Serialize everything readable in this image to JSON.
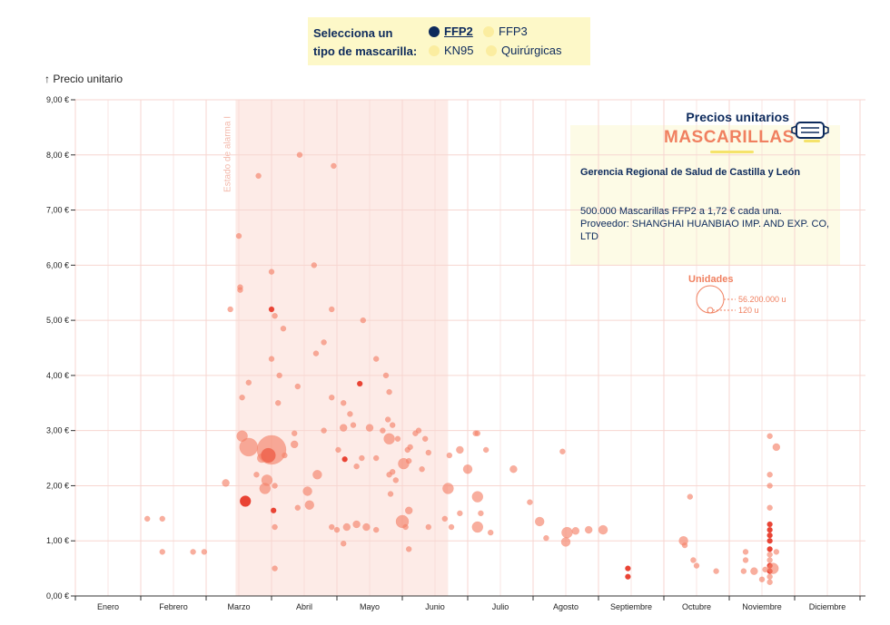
{
  "selector": {
    "prompt_line1": "Selecciona un",
    "prompt_line2": "tipo de mascarilla:",
    "options": [
      {
        "label": "FFP2",
        "active": true
      },
      {
        "label": "FFP3",
        "active": false
      },
      {
        "label": "KN95",
        "active": false
      },
      {
        "label": "Quirúrgicas",
        "active": false
      }
    ]
  },
  "info": {
    "title": "Precios unitarios",
    "big": "MASCARILLAS",
    "buyer": "Gerencia Regional de Salud de Castilla y León",
    "detail_line1": "500.000 Mascarillas FFP2 a 1,72 € cada una.",
    "detail_line2": "Proveedor: SHANGHAI HUANBIAO IMP. AND EXP. CO, LTD"
  },
  "size_legend": {
    "title": "Unidades",
    "max_label": "56.200.000 u",
    "min_label": "120 u"
  },
  "chart_data": {
    "type": "scatter",
    "ylabel": "↑ Precio unitario",
    "ylim": [
      0,
      9
    ],
    "yticks": [
      "0,00 €",
      "1,00 €",
      "2,00 €",
      "3,00 €",
      "4,00 €",
      "5,00 €",
      "6,00 €",
      "7,00 €",
      "8,00 €",
      "9,00 €"
    ],
    "xlim": [
      0,
      12
    ],
    "months": [
      "Enero",
      "Febrero",
      "Marzo",
      "Abril",
      "Mayo",
      "Junio",
      "Julio",
      "Agosto",
      "Septiembre",
      "Octubre",
      "Noviembre",
      "Diciembre"
    ],
    "grid": true,
    "shaded_period": {
      "label": "Estado de alarma I",
      "from": 2.45,
      "to": 5.7
    },
    "colors": {
      "point": "#f5836a",
      "highlight": "#e83a2a",
      "shade": "#fdebe7",
      "grid": "#f7d6d0",
      "axis": "#333333"
    },
    "points": [
      {
        "x": 1.1,
        "y": 1.4,
        "u": 3
      },
      {
        "x": 1.33,
        "y": 1.4,
        "u": 3
      },
      {
        "x": 1.33,
        "y": 0.8,
        "u": 3
      },
      {
        "x": 1.8,
        "y": 0.8,
        "u": 3
      },
      {
        "x": 1.97,
        "y": 0.8,
        "u": 3
      },
      {
        "x": 2.3,
        "y": 2.05,
        "u": 4
      },
      {
        "x": 2.37,
        "y": 5.2,
        "u": 3
      },
      {
        "x": 2.5,
        "y": 6.53,
        "u": 3
      },
      {
        "x": 2.52,
        "y": 5.6,
        "u": 3
      },
      {
        "x": 2.52,
        "y": 5.55,
        "u": 3
      },
      {
        "x": 2.55,
        "y": 3.6,
        "u": 3
      },
      {
        "x": 2.55,
        "y": 2.9,
        "u": 6
      },
      {
        "x": 2.6,
        "y": 1.72,
        "u": 6,
        "h": 1
      },
      {
        "x": 2.65,
        "y": 3.87,
        "u": 3
      },
      {
        "x": 2.65,
        "y": 2.7,
        "u": 10
      },
      {
        "x": 2.77,
        "y": 2.2,
        "u": 3
      },
      {
        "x": 2.8,
        "y": 7.62,
        "u": 3
      },
      {
        "x": 2.85,
        "y": 2.5,
        "u": 5
      },
      {
        "x": 2.9,
        "y": 1.95,
        "u": 6
      },
      {
        "x": 2.93,
        "y": 2.1,
        "u": 6
      },
      {
        "x": 2.95,
        "y": 2.55,
        "u": 8,
        "h": 1
      },
      {
        "x": 3.0,
        "y": 2.65,
        "u": 16
      },
      {
        "x": 3.0,
        "y": 5.2,
        "u": 3,
        "h": 1
      },
      {
        "x": 3.0,
        "y": 4.3,
        "u": 3
      },
      {
        "x": 3.0,
        "y": 5.88,
        "u": 3
      },
      {
        "x": 3.03,
        "y": 1.55,
        "u": 3,
        "h": 1
      },
      {
        "x": 3.05,
        "y": 1.25,
        "u": 3
      },
      {
        "x": 3.05,
        "y": 0.5,
        "u": 3
      },
      {
        "x": 3.05,
        "y": 2.0,
        "u": 3
      },
      {
        "x": 3.05,
        "y": 5.08,
        "u": 3
      },
      {
        "x": 3.1,
        "y": 3.5,
        "u": 3
      },
      {
        "x": 3.12,
        "y": 4.0,
        "u": 3
      },
      {
        "x": 3.18,
        "y": 4.85,
        "u": 3
      },
      {
        "x": 3.2,
        "y": 2.55,
        "u": 3
      },
      {
        "x": 3.35,
        "y": 2.95,
        "u": 3
      },
      {
        "x": 3.4,
        "y": 3.8,
        "u": 3
      },
      {
        "x": 3.35,
        "y": 2.75,
        "u": 4
      },
      {
        "x": 3.4,
        "y": 1.6,
        "u": 3
      },
      {
        "x": 3.43,
        "y": 8.0,
        "u": 3
      },
      {
        "x": 3.55,
        "y": 1.9,
        "u": 5
      },
      {
        "x": 3.58,
        "y": 1.65,
        "u": 5
      },
      {
        "x": 3.65,
        "y": 6.0,
        "u": 3
      },
      {
        "x": 3.68,
        "y": 4.4,
        "u": 3
      },
      {
        "x": 3.7,
        "y": 2.2,
        "u": 5
      },
      {
        "x": 3.8,
        "y": 4.6,
        "u": 3
      },
      {
        "x": 3.8,
        "y": 3.0,
        "u": 3
      },
      {
        "x": 3.92,
        "y": 3.6,
        "u": 3
      },
      {
        "x": 3.92,
        "y": 5.2,
        "u": 3
      },
      {
        "x": 3.92,
        "y": 1.25,
        "u": 3
      },
      {
        "x": 3.95,
        "y": 7.8,
        "u": 3
      },
      {
        "x": 4.0,
        "y": 1.2,
        "u": 3
      },
      {
        "x": 4.02,
        "y": 2.65,
        "u": 3
      },
      {
        "x": 4.1,
        "y": 3.5,
        "u": 3
      },
      {
        "x": 4.1,
        "y": 3.05,
        "u": 4
      },
      {
        "x": 4.1,
        "y": 0.95,
        "u": 3
      },
      {
        "x": 4.12,
        "y": 2.48,
        "u": 3,
        "h": 1
      },
      {
        "x": 4.15,
        "y": 1.25,
        "u": 4
      },
      {
        "x": 4.2,
        "y": 3.3,
        "u": 3
      },
      {
        "x": 4.25,
        "y": 3.1,
        "u": 3
      },
      {
        "x": 4.3,
        "y": 1.3,
        "u": 4
      },
      {
        "x": 4.35,
        "y": 3.85,
        "u": 3,
        "h": 1
      },
      {
        "x": 4.3,
        "y": 2.35,
        "u": 3
      },
      {
        "x": 4.38,
        "y": 2.5,
        "u": 3
      },
      {
        "x": 4.4,
        "y": 5.0,
        "u": 3
      },
      {
        "x": 4.45,
        "y": 1.25,
        "u": 4
      },
      {
        "x": 4.5,
        "y": 3.05,
        "u": 4
      },
      {
        "x": 4.6,
        "y": 2.5,
        "u": 3
      },
      {
        "x": 4.6,
        "y": 4.3,
        "u": 3
      },
      {
        "x": 4.6,
        "y": 1.2,
        "u": 3
      },
      {
        "x": 4.7,
        "y": 3.0,
        "u": 3
      },
      {
        "x": 4.75,
        "y": 4.0,
        "u": 3
      },
      {
        "x": 4.78,
        "y": 3.2,
        "u": 3
      },
      {
        "x": 4.8,
        "y": 2.85,
        "u": 6
      },
      {
        "x": 4.8,
        "y": 3.7,
        "u": 3
      },
      {
        "x": 4.8,
        "y": 2.2,
        "u": 3
      },
      {
        "x": 4.82,
        "y": 1.85,
        "u": 3
      },
      {
        "x": 4.85,
        "y": 3.1,
        "u": 3
      },
      {
        "x": 4.85,
        "y": 2.25,
        "u": 3
      },
      {
        "x": 4.9,
        "y": 2.1,
        "u": 3
      },
      {
        "x": 4.93,
        "y": 2.85,
        "u": 3
      },
      {
        "x": 5.0,
        "y": 1.35,
        "u": 7
      },
      {
        "x": 5.02,
        "y": 2.4,
        "u": 6
      },
      {
        "x": 5.05,
        "y": 1.25,
        "u": 3
      },
      {
        "x": 5.08,
        "y": 2.65,
        "u": 3
      },
      {
        "x": 5.1,
        "y": 1.55,
        "u": 4
      },
      {
        "x": 5.1,
        "y": 0.85,
        "u": 3
      },
      {
        "x": 5.1,
        "y": 2.45,
        "u": 3
      },
      {
        "x": 5.12,
        "y": 2.7,
        "u": 3
      },
      {
        "x": 5.2,
        "y": 2.95,
        "u": 3
      },
      {
        "x": 5.25,
        "y": 3.0,
        "u": 3
      },
      {
        "x": 5.3,
        "y": 2.3,
        "u": 3
      },
      {
        "x": 5.35,
        "y": 2.85,
        "u": 3
      },
      {
        "x": 5.4,
        "y": 2.6,
        "u": 3
      },
      {
        "x": 5.4,
        "y": 1.25,
        "u": 3
      },
      {
        "x": 5.65,
        "y": 1.4,
        "u": 3
      },
      {
        "x": 5.7,
        "y": 1.95,
        "u": 6
      },
      {
        "x": 5.72,
        "y": 2.55,
        "u": 3
      },
      {
        "x": 5.75,
        "y": 1.25,
        "u": 3
      },
      {
        "x": 5.88,
        "y": 2.65,
        "u": 4
      },
      {
        "x": 5.88,
        "y": 1.5,
        "u": 3
      },
      {
        "x": 6.0,
        "y": 2.3,
        "u": 5
      },
      {
        "x": 6.12,
        "y": 2.95,
        "u": 3
      },
      {
        "x": 6.15,
        "y": 2.95,
        "u": 3
      },
      {
        "x": 6.15,
        "y": 1.8,
        "u": 6
      },
      {
        "x": 6.15,
        "y": 1.25,
        "u": 6
      },
      {
        "x": 6.2,
        "y": 1.5,
        "u": 3
      },
      {
        "x": 6.28,
        "y": 2.65,
        "u": 3
      },
      {
        "x": 6.35,
        "y": 1.15,
        "u": 3
      },
      {
        "x": 6.7,
        "y": 2.3,
        "u": 4
      },
      {
        "x": 6.95,
        "y": 1.7,
        "u": 3
      },
      {
        "x": 7.1,
        "y": 1.35,
        "u": 5
      },
      {
        "x": 7.2,
        "y": 1.05,
        "u": 3
      },
      {
        "x": 7.45,
        "y": 2.62,
        "u": 3
      },
      {
        "x": 7.5,
        "y": 0.98,
        "u": 5
      },
      {
        "x": 7.52,
        "y": 1.15,
        "u": 6
      },
      {
        "x": 7.65,
        "y": 1.18,
        "u": 4
      },
      {
        "x": 7.85,
        "y": 1.2,
        "u": 4
      },
      {
        "x": 8.07,
        "y": 1.2,
        "u": 5
      },
      {
        "x": 8.45,
        "y": 0.5,
        "u": 3,
        "h": 1
      },
      {
        "x": 8.45,
        "y": 0.35,
        "u": 3,
        "h": 1
      },
      {
        "x": 9.3,
        "y": 1.0,
        "u": 5
      },
      {
        "x": 9.32,
        "y": 0.92,
        "u": 3
      },
      {
        "x": 9.4,
        "y": 1.8,
        "u": 3
      },
      {
        "x": 9.45,
        "y": 0.65,
        "u": 3
      },
      {
        "x": 9.5,
        "y": 0.55,
        "u": 3
      },
      {
        "x": 9.8,
        "y": 0.45,
        "u": 3
      },
      {
        "x": 10.22,
        "y": 0.45,
        "u": 3
      },
      {
        "x": 10.25,
        "y": 0.8,
        "u": 3
      },
      {
        "x": 10.25,
        "y": 0.65,
        "u": 3
      },
      {
        "x": 10.38,
        "y": 0.45,
        "u": 4
      },
      {
        "x": 10.62,
        "y": 2.9,
        "u": 3
      },
      {
        "x": 10.62,
        "y": 2.2,
        "u": 3
      },
      {
        "x": 10.62,
        "y": 2.0,
        "u": 3
      },
      {
        "x": 10.62,
        "y": 1.6,
        "u": 3
      },
      {
        "x": 10.62,
        "y": 1.3,
        "u": 3,
        "h": 1
      },
      {
        "x": 10.62,
        "y": 1.2,
        "u": 3,
        "h": 1
      },
      {
        "x": 10.62,
        "y": 1.1,
        "u": 3,
        "h": 1
      },
      {
        "x": 10.62,
        "y": 1.0,
        "u": 3,
        "h": 1
      },
      {
        "x": 10.62,
        "y": 0.85,
        "u": 3,
        "h": 1
      },
      {
        "x": 10.62,
        "y": 0.75,
        "u": 3
      },
      {
        "x": 10.62,
        "y": 0.65,
        "u": 3
      },
      {
        "x": 10.62,
        "y": 0.55,
        "u": 3,
        "h": 1
      },
      {
        "x": 10.62,
        "y": 0.45,
        "u": 3,
        "h": 1
      },
      {
        "x": 10.62,
        "y": 0.35,
        "u": 3
      },
      {
        "x": 10.62,
        "y": 0.25,
        "u": 3
      },
      {
        "x": 10.67,
        "y": 0.5,
        "u": 6
      },
      {
        "x": 10.72,
        "y": 2.7,
        "u": 4
      },
      {
        "x": 10.72,
        "y": 0.8,
        "u": 3
      },
      {
        "x": 10.5,
        "y": 0.3,
        "u": 3
      },
      {
        "x": 10.55,
        "y": 0.48,
        "u": 3
      }
    ]
  }
}
